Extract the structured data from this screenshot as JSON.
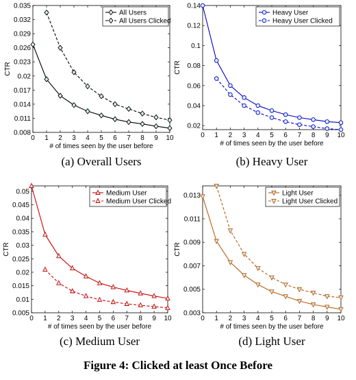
{
  "figure_caption": "Figure 4: Clicked at least Once Before",
  "chart_data": [
    {
      "type": "line",
      "caption": "(a) Overall Users",
      "xlabel": "# of times seen by the user before",
      "ylabel": "CTR",
      "xlim": [
        0,
        10
      ],
      "ylim": [
        0.008,
        0.035
      ],
      "xticks": [
        0,
        1,
        2,
        3,
        4,
        5,
        6,
        7,
        8,
        9,
        10
      ],
      "yticks": [
        0.008,
        0.011,
        0.014,
        0.017,
        0.02,
        0.023,
        0.026,
        0.029,
        0.032,
        0.035
      ],
      "ytick_labels": [
        "0.008",
        "0.011",
        "0.014",
        "0.017",
        "0.02",
        "0.023",
        "0.026",
        "0.029",
        "0.032",
        "0.035"
      ],
      "grid": false,
      "legend_position": "top-right",
      "series": [
        {
          "name": "All Users",
          "color": "#000000",
          "dash": "solid",
          "marker": "diamond",
          "x": [
            0,
            1,
            2,
            3,
            4,
            5,
            6,
            7,
            8,
            9,
            10
          ],
          "y": [
            0.0267,
            0.0193,
            0.0158,
            0.0138,
            0.0125,
            0.0116,
            0.0108,
            0.0102,
            0.0098,
            0.0093,
            0.0089
          ]
        },
        {
          "name": "All Users Clicked",
          "color": "#000000",
          "dash": "dashed",
          "marker": "diamond",
          "x": [
            1,
            2,
            3,
            4,
            5,
            6,
            7,
            8,
            9,
            10
          ],
          "y": [
            0.0335,
            0.026,
            0.0208,
            0.0178,
            0.0157,
            0.014,
            0.013,
            0.012,
            0.0112,
            0.0106
          ]
        }
      ]
    },
    {
      "type": "line",
      "caption": "(b) Heavy User",
      "xlabel": "# of times seen by the user before",
      "ylabel": "CTR",
      "xlim": [
        0,
        10
      ],
      "ylim": [
        0.016,
        0.14
      ],
      "xticks": [
        0,
        1,
        2,
        3,
        4,
        5,
        6,
        7,
        8,
        9,
        10
      ],
      "yticks": [
        0.02,
        0.04,
        0.06,
        0.08,
        0.1,
        0.12,
        0.14
      ],
      "ytick_labels": [
        "0.02",
        "0.04",
        "0.06",
        "0.08",
        "0.1",
        "0.12",
        "0.14"
      ],
      "grid": false,
      "legend_position": "top-right",
      "series": [
        {
          "name": "Heavy User",
          "color": "#0000cc",
          "dash": "solid",
          "marker": "circle",
          "x": [
            0,
            1,
            2,
            3,
            4,
            5,
            6,
            7,
            8,
            9,
            10
          ],
          "y": [
            0.14,
            0.085,
            0.06,
            0.048,
            0.04,
            0.035,
            0.031,
            0.028,
            0.026,
            0.024,
            0.023
          ]
        },
        {
          "name": "Heavy User Clicked",
          "color": "#0000cc",
          "dash": "dashed",
          "marker": "circle",
          "x": [
            1,
            2,
            3,
            4,
            5,
            6,
            7,
            8,
            9,
            10
          ],
          "y": [
            0.067,
            0.051,
            0.04,
            0.033,
            0.028,
            0.024,
            0.021,
            0.019,
            0.017,
            0.016
          ]
        }
      ]
    },
    {
      "type": "line",
      "caption": "(c) Medium User",
      "xlabel": "# of times seen by the user before",
      "ylabel": "CTR",
      "xlim": [
        0,
        10
      ],
      "ylim": [
        0.005,
        0.052
      ],
      "xticks": [
        0,
        1,
        2,
        3,
        4,
        5,
        6,
        7,
        8,
        9,
        10
      ],
      "yticks": [
        0.005,
        0.01,
        0.015,
        0.02,
        0.025,
        0.03,
        0.035,
        0.04,
        0.045,
        0.05
      ],
      "ytick_labels": [
        "0.005",
        "0.01",
        "0.015",
        "0.02",
        "0.025",
        "0.03",
        "0.035",
        "0.04",
        "0.045",
        "0.05"
      ],
      "grid": false,
      "legend_position": "top-right",
      "series": [
        {
          "name": "Medium User",
          "color": "#cc0000",
          "dash": "solid",
          "marker": "triangle-up",
          "x": [
            0,
            1,
            2,
            3,
            4,
            5,
            6,
            7,
            8,
            9,
            10
          ],
          "y": [
            0.052,
            0.034,
            0.026,
            0.0215,
            0.0185,
            0.016,
            0.0145,
            0.0133,
            0.0122,
            0.0112,
            0.0103
          ]
        },
        {
          "name": "Medium User Clicked",
          "color": "#cc0000",
          "dash": "dashed",
          "marker": "triangle-up",
          "x": [
            1,
            2,
            3,
            4,
            5,
            6,
            7,
            8,
            9,
            10
          ],
          "y": [
            0.021,
            0.016,
            0.013,
            0.0112,
            0.0098,
            0.009,
            0.0083,
            0.0078,
            0.0073,
            0.0068
          ]
        }
      ]
    },
    {
      "type": "line",
      "caption": "(d) Light User",
      "xlabel": "# of times seen by the user before",
      "ylabel": "CTR",
      "xlim": [
        0,
        10
      ],
      "ylim": [
        0.003,
        0.0138
      ],
      "xticks": [
        0,
        1,
        2,
        3,
        4,
        5,
        6,
        7,
        8,
        9,
        10
      ],
      "yticks": [
        0.003,
        0.005,
        0.007,
        0.009,
        0.011,
        0.013
      ],
      "ytick_labels": [
        "0.003",
        "0.005",
        "0.007",
        "0.009",
        "0.011",
        "0.013"
      ],
      "grid": false,
      "legend_position": "top-right",
      "series": [
        {
          "name": "Light User",
          "color": "#b85c10",
          "dash": "solid",
          "marker": "triangle-down",
          "x": [
            0,
            1,
            2,
            3,
            4,
            5,
            6,
            7,
            8,
            9,
            10
          ],
          "y": [
            0.0129,
            0.0091,
            0.0073,
            0.0062,
            0.0054,
            0.0048,
            0.0044,
            0.004,
            0.0037,
            0.0035,
            0.0033
          ]
        },
        {
          "name": "Light User Clicked",
          "color": "#b85c10",
          "dash": "dashed",
          "marker": "triangle-down",
          "x": [
            1,
            2,
            3,
            4,
            5,
            6,
            7,
            8,
            9,
            10
          ],
          "y": [
            0.0138,
            0.01,
            0.008,
            0.0068,
            0.006,
            0.0054,
            0.005,
            0.0047,
            0.0044,
            0.0043
          ]
        }
      ]
    }
  ]
}
